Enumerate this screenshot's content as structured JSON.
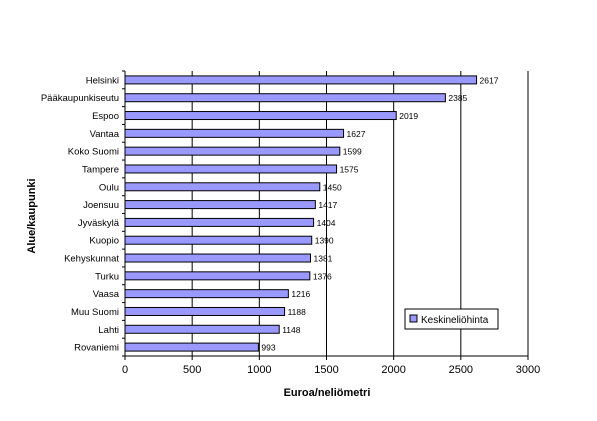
{
  "chart_data": {
    "type": "bar",
    "orientation": "horizontal",
    "title": "",
    "xlabel": "Euroa/neliömetri",
    "ylabel": "Alue/kaupunki",
    "xlim": [
      0,
      3000
    ],
    "xticks": [
      0,
      500,
      1000,
      1500,
      2000,
      2500,
      3000
    ],
    "grid": "vertical major gridlines",
    "legend_position": "bottom-right",
    "categories": [
      "Helsinki",
      "Pääkaupunkiseutu",
      "Espoo",
      "Vantaa",
      "Koko Suomi",
      "Tampere",
      "Oulu",
      "Joensuu",
      "Jyväskylä",
      "Kuopio",
      "Kehyskunnat",
      "Turku",
      "Vaasa",
      "Muu Suomi",
      "Lahti",
      "Rovaniemi"
    ],
    "series": [
      {
        "name": "Keskineliöhinta",
        "color": "#9999ff",
        "values": [
          2617,
          2385,
          2019,
          1627,
          1599,
          1575,
          1450,
          1417,
          1404,
          1390,
          1381,
          1376,
          1216,
          1188,
          1148,
          993
        ]
      }
    ]
  }
}
